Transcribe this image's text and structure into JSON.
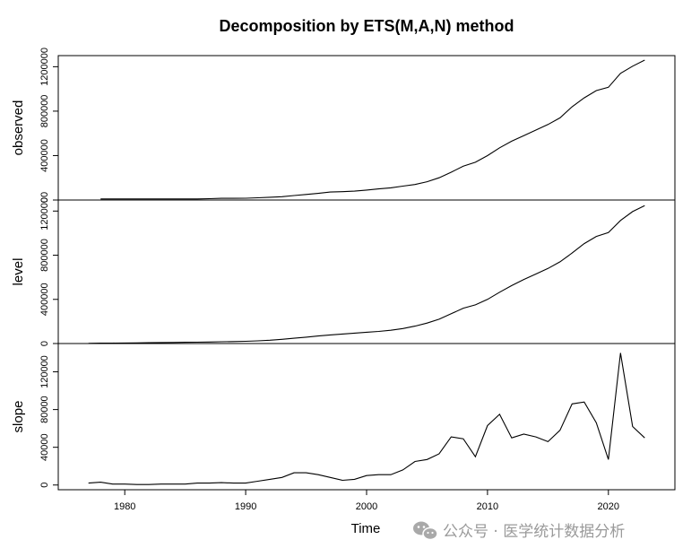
{
  "chart_data": {
    "type": "line",
    "title": "Decomposition by ETS(M,A,N) method",
    "xlabel": "Time",
    "xlim": [
      1974.5,
      2025.5
    ],
    "x_ticks": [
      1980,
      1990,
      2000,
      2010,
      2020
    ],
    "panels": [
      {
        "name": "observed",
        "ylabel": "observed",
        "ylim": [
          0,
          1300000
        ],
        "y_ticks": [
          0,
          400000,
          800000,
          1200000
        ],
        "x": [
          1978,
          1979,
          1980,
          1981,
          1982,
          1983,
          1984,
          1985,
          1986,
          1987,
          1988,
          1989,
          1990,
          1991,
          1992,
          1993,
          1994,
          1995,
          1996,
          1997,
          1998,
          1999,
          2000,
          2001,
          2002,
          2003,
          2004,
          2005,
          2006,
          2007,
          2008,
          2009,
          2010,
          2011,
          2012,
          2013,
          2014,
          2015,
          2016,
          2017,
          2018,
          2019,
          2020,
          2021,
          2022,
          2023
        ],
        "values": [
          10000,
          10000,
          10000,
          10000,
          10000,
          10000,
          10000,
          10000,
          10000,
          12000,
          15000,
          15000,
          16000,
          20000,
          25000,
          30000,
          40000,
          50000,
          60000,
          72000,
          75000,
          80000,
          90000,
          100000,
          110000,
          125000,
          140000,
          165000,
          200000,
          250000,
          305000,
          340000,
          400000,
          470000,
          530000,
          580000,
          630000,
          680000,
          740000,
          840000,
          920000,
          985000,
          1015000,
          1140000,
          1205000,
          1260000
        ]
      },
      {
        "name": "level",
        "ylabel": "level",
        "ylim": [
          0,
          1300000
        ],
        "y_ticks": [
          0,
          400000,
          800000,
          1200000
        ],
        "x": [
          1977,
          1978,
          1979,
          1980,
          1981,
          1982,
          1983,
          1984,
          1985,
          1986,
          1987,
          1988,
          1989,
          1990,
          1991,
          1992,
          1993,
          1994,
          1995,
          1996,
          1997,
          1998,
          1999,
          2000,
          2001,
          2002,
          2003,
          2004,
          2005,
          2006,
          2007,
          2008,
          2009,
          2010,
          2011,
          2012,
          2013,
          2014,
          2015,
          2016,
          2017,
          2018,
          2019,
          2020,
          2021,
          2022,
          2023
        ],
        "values": [
          2000,
          3000,
          4000,
          5000,
          6000,
          8000,
          9000,
          10000,
          11000,
          12000,
          14000,
          16000,
          18000,
          20000,
          24000,
          30000,
          38000,
          48000,
          58000,
          68000,
          78000,
          86000,
          94000,
          102000,
          110000,
          120000,
          136000,
          158000,
          185000,
          220000,
          270000,
          320000,
          350000,
          400000,
          465000,
          525000,
          580000,
          630000,
          680000,
          740000,
          820000,
          905000,
          970000,
          1005000,
          1115000,
          1195000,
          1250000
        ]
      },
      {
        "name": "slope",
        "ylabel": "slope",
        "ylim": [
          -5000,
          150000
        ],
        "y_ticks": [
          0,
          40000,
          80000,
          120000
        ],
        "x": [
          1977,
          1978,
          1979,
          1980,
          1981,
          1982,
          1983,
          1984,
          1985,
          1986,
          1987,
          1988,
          1989,
          1990,
          1991,
          1992,
          1993,
          1994,
          1995,
          1996,
          1997,
          1998,
          1999,
          2000,
          2001,
          2002,
          2003,
          2004,
          2005,
          2006,
          2007,
          2008,
          2009,
          2010,
          2011,
          2012,
          2013,
          2014,
          2015,
          2016,
          2017,
          2018,
          2019,
          2020,
          2021,
          2022,
          2023
        ],
        "values": [
          2000,
          3000,
          1000,
          1000,
          500,
          500,
          1000,
          1000,
          1000,
          2000,
          2000,
          2500,
          2000,
          2000,
          4000,
          6000,
          8000,
          13000,
          13000,
          11000,
          8000,
          5000,
          6000,
          10000,
          11000,
          11000,
          16000,
          25000,
          27000,
          33000,
          51000,
          49000,
          30000,
          63000,
          75000,
          50000,
          54000,
          51000,
          46000,
          58000,
          86000,
          88000,
          66000,
          27000,
          140000,
          62000,
          50000
        ]
      }
    ]
  },
  "watermark": {
    "icon": "wechat-icon",
    "text": "公众号 · 医学统计数据分析"
  }
}
